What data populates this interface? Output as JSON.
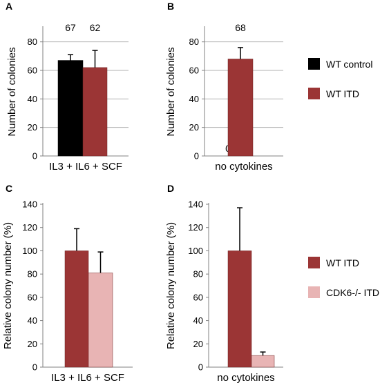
{
  "colors": {
    "wt_control": "#000000",
    "wt_itd": "#9b3535",
    "cdk6_itd": "#e8b4b4",
    "grid": "#b0b0b0",
    "axis": "#808080"
  },
  "legends": [
    {
      "items": [
        {
          "label": "WT control",
          "color": "#000000"
        },
        {
          "label": "WT ITD",
          "color": "#9b3535"
        }
      ]
    },
    {
      "items": [
        {
          "label": "WT ITD",
          "color": "#9b3535"
        },
        {
          "label": "CDK6-/- ITD",
          "color": "#e8b4b4"
        }
      ]
    }
  ],
  "chart_data": [
    {
      "panel": "A",
      "type": "bar",
      "categories": [
        "IL3 + IL6 + SCF"
      ],
      "series": [
        {
          "name": "WT control",
          "values": [
            67
          ],
          "errors": [
            4
          ],
          "labels": [
            "67"
          ],
          "color": "#000000"
        },
        {
          "name": "WT ITD",
          "values": [
            62
          ],
          "errors": [
            12
          ],
          "labels": [
            "62"
          ],
          "color": "#9b3535"
        }
      ],
      "xlabel": "IL3 + IL6 + SCF",
      "ylabel": "Number of colonies",
      "ylim": [
        0,
        90
      ],
      "yticks": [
        0,
        20,
        40,
        60,
        80
      ],
      "grid": true
    },
    {
      "panel": "B",
      "type": "bar",
      "categories": [
        "no cytokines"
      ],
      "series": [
        {
          "name": "WT control",
          "values": [
            0
          ],
          "errors": [
            0
          ],
          "labels": [
            "0"
          ],
          "color": "#000000"
        },
        {
          "name": "WT ITD",
          "values": [
            68
          ],
          "errors": [
            8
          ],
          "labels": [
            "68"
          ],
          "color": "#9b3535"
        }
      ],
      "xlabel": "no cytokines",
      "ylabel": "Number of colonies",
      "ylim": [
        0,
        90
      ],
      "yticks": [
        0,
        20,
        40,
        60,
        80
      ],
      "grid": true
    },
    {
      "panel": "C",
      "type": "bar",
      "categories": [
        "IL3 + IL6 + SCF"
      ],
      "series": [
        {
          "name": "WT ITD",
          "values": [
            100
          ],
          "errors": [
            19
          ],
          "labels": [
            ""
          ],
          "color": "#9b3535"
        },
        {
          "name": "CDK6-/- ITD",
          "values": [
            81
          ],
          "errors": [
            18
          ],
          "labels": [
            ""
          ],
          "color": "#e8b4b4"
        }
      ],
      "xlabel": "IL3 + IL6 + SCF",
      "ylabel": "Relative colony number (%)",
      "ylim": [
        0,
        140
      ],
      "yticks": [
        0,
        20,
        40,
        60,
        80,
        100,
        120,
        140
      ],
      "grid": false
    },
    {
      "panel": "D",
      "type": "bar",
      "categories": [
        "no cytokines"
      ],
      "series": [
        {
          "name": "WT ITD",
          "values": [
            100
          ],
          "errors": [
            37
          ],
          "labels": [
            ""
          ],
          "color": "#9b3535"
        },
        {
          "name": "CDK6-/- ITD",
          "values": [
            10
          ],
          "errors": [
            3
          ],
          "labels": [
            ""
          ],
          "color": "#e8b4b4"
        }
      ],
      "xlabel": "no cytokines",
      "ylabel": "Relative colony number (%)",
      "ylim": [
        0,
        140
      ],
      "yticks": [
        0,
        20,
        40,
        60,
        80,
        100,
        120,
        140
      ],
      "grid": false
    }
  ]
}
